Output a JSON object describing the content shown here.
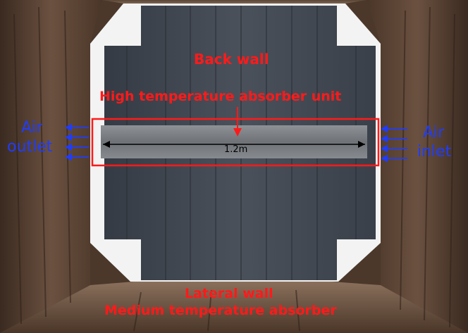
{
  "labels": {
    "back_wall": "Back wall",
    "absorber_unit": "High temperature absorber unit",
    "dimension": "1.2m",
    "air_outlet_line1": "Air",
    "air_outlet_line2": "outlet",
    "air_inlet_line1": "Air",
    "air_inlet_line2": "inlet",
    "lateral_wall": "Lateral wall",
    "medium_absorber": "Medium temperature absorber"
  },
  "colors": {
    "annotation_red": "#ff1a1a",
    "annotation_blue": "#1f3cff",
    "back_wall_panel": "#3f4650",
    "absorber_strip": "#7b7f84",
    "side_wall_rust": "#5a4030"
  }
}
